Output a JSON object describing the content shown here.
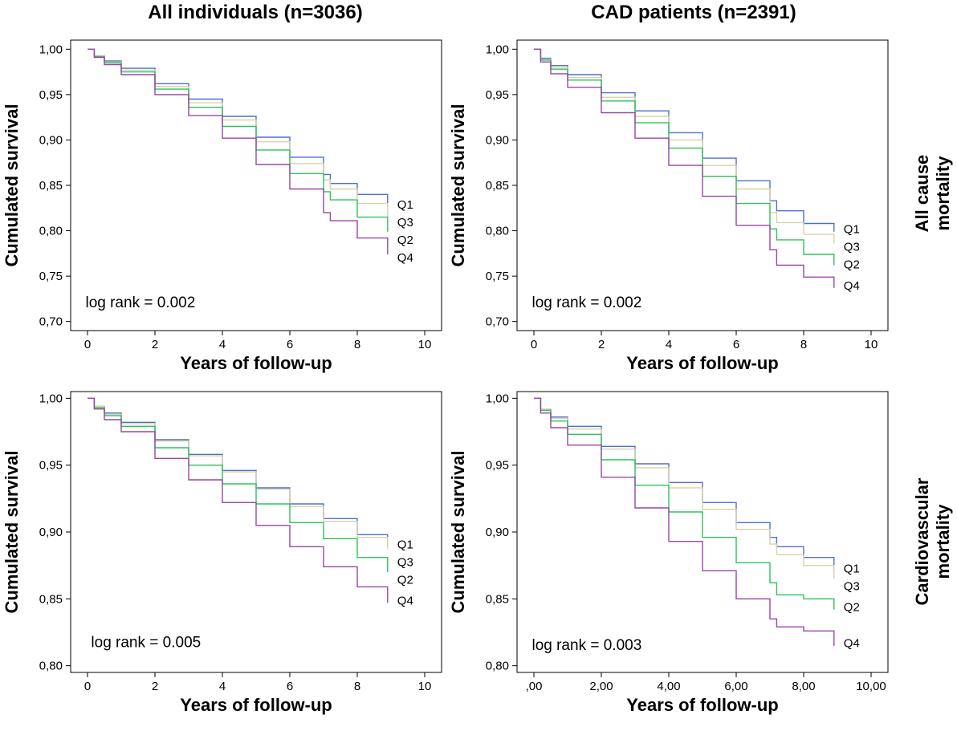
{
  "figure": {
    "col_titles": [
      "All individuals (n=3036)",
      "CAD patients (n=2391)"
    ],
    "row_titles": [
      [
        "All cause",
        "mortality"
      ],
      [
        "Cardiovascular",
        "mortality"
      ]
    ]
  },
  "colors": {
    "Q1": "#4f6fd1",
    "Q2": "#2ec35a",
    "Q3": "#d9d3a6",
    "Q4": "#9b45a8"
  },
  "chart_data": [
    {
      "type": "line",
      "title": "All individuals (n=3036)",
      "xlabel": "Years of follow-up",
      "ylabel": "Cumulated survival",
      "xlim": [
        -0.5,
        10.5
      ],
      "ylim": [
        0.69,
        1.01
      ],
      "xticks": [
        0,
        2,
        4,
        6,
        8,
        10
      ],
      "xtick_labels": [
        "0",
        "2",
        "4",
        "6",
        "8",
        "10"
      ],
      "yticks": [
        0.7,
        0.75,
        0.8,
        0.85,
        0.9,
        0.95,
        1.0
      ],
      "ytick_labels": [
        "0,70",
        "0,75",
        "0,80",
        "0,85",
        "0,90",
        "0,95",
        "1,00"
      ],
      "annotation": "log rank = 0.002",
      "grid": false,
      "label_order": [
        "Q1",
        "Q3",
        "Q2",
        "Q4"
      ],
      "series": [
        {
          "name": "Q1",
          "x": [
            0,
            0.2,
            0.5,
            1,
            2,
            3,
            4,
            5,
            6,
            7,
            7.2,
            8,
            8.9
          ],
          "y": [
            1.0,
            0.993,
            0.987,
            0.979,
            0.962,
            0.945,
            0.926,
            0.903,
            0.881,
            0.862,
            0.852,
            0.84,
            0.826
          ]
        },
        {
          "name": "Q3",
          "x": [
            0,
            0.2,
            0.5,
            1,
            2,
            3,
            4,
            5,
            6,
            7,
            7.2,
            8,
            8.9
          ],
          "y": [
            1.0,
            0.993,
            0.986,
            0.977,
            0.959,
            0.941,
            0.922,
            0.898,
            0.874,
            0.856,
            0.846,
            0.83,
            0.815
          ]
        },
        {
          "name": "Q2",
          "x": [
            0,
            0.2,
            0.5,
            1,
            2,
            3,
            4,
            5,
            6,
            7,
            7.2,
            8,
            8.9
          ],
          "y": [
            1.0,
            0.992,
            0.985,
            0.975,
            0.956,
            0.936,
            0.915,
            0.889,
            0.863,
            0.843,
            0.834,
            0.815,
            0.799
          ]
        },
        {
          "name": "Q4",
          "x": [
            0,
            0.2,
            0.5,
            1,
            2,
            3,
            4,
            5,
            6,
            7,
            7.2,
            8,
            8.9
          ],
          "y": [
            1.0,
            0.991,
            0.983,
            0.972,
            0.95,
            0.927,
            0.902,
            0.873,
            0.846,
            0.82,
            0.811,
            0.792,
            0.774
          ]
        }
      ]
    },
    {
      "type": "line",
      "title": "CAD patients (n=2391)",
      "xlabel": "Years of follow-up",
      "ylabel": "Cumulated survival",
      "xlim": [
        -0.5,
        10.5
      ],
      "ylim": [
        0.69,
        1.01
      ],
      "xticks": [
        0,
        2,
        4,
        6,
        8,
        10
      ],
      "xtick_labels": [
        "0",
        "2",
        "4",
        "6",
        "8",
        "10"
      ],
      "yticks": [
        0.7,
        0.75,
        0.8,
        0.85,
        0.9,
        0.95,
        1.0
      ],
      "ytick_labels": [
        "0,70",
        "0,75",
        "0,80",
        "0,85",
        "0,90",
        "0,95",
        "1,00"
      ],
      "annotation": "log rank = 0.002",
      "grid": false,
      "label_order": [
        "Q1",
        "Q3",
        "Q2",
        "Q4"
      ],
      "series": [
        {
          "name": "Q1",
          "x": [
            0,
            0.2,
            0.5,
            1,
            2,
            3,
            4,
            5,
            6,
            7,
            7.2,
            8,
            8.9
          ],
          "y": [
            1.0,
            0.99,
            0.982,
            0.972,
            0.952,
            0.932,
            0.908,
            0.88,
            0.855,
            0.833,
            0.822,
            0.808,
            0.799
          ]
        },
        {
          "name": "Q3",
          "x": [
            0,
            0.2,
            0.5,
            1,
            2,
            3,
            4,
            5,
            6,
            7,
            7.2,
            8,
            8.9
          ],
          "y": [
            1.0,
            0.989,
            0.98,
            0.969,
            0.947,
            0.926,
            0.9,
            0.872,
            0.846,
            0.82,
            0.809,
            0.796,
            0.786
          ]
        },
        {
          "name": "Q2",
          "x": [
            0,
            0.2,
            0.5,
            1,
            2,
            3,
            4,
            5,
            6,
            7,
            7.2,
            8,
            8.9
          ],
          "y": [
            1.0,
            0.988,
            0.978,
            0.966,
            0.943,
            0.919,
            0.891,
            0.86,
            0.83,
            0.802,
            0.79,
            0.774,
            0.762
          ]
        },
        {
          "name": "Q4",
          "x": [
            0,
            0.2,
            0.5,
            1,
            2,
            3,
            4,
            5,
            6,
            7,
            7.2,
            8,
            8.9
          ],
          "y": [
            1.0,
            0.986,
            0.973,
            0.958,
            0.93,
            0.902,
            0.872,
            0.838,
            0.806,
            0.779,
            0.762,
            0.749,
            0.737
          ]
        }
      ]
    },
    {
      "type": "line",
      "title": "",
      "xlabel": "Years of follow-up",
      "ylabel": "Cumulated survival",
      "xlim": [
        -0.5,
        10.5
      ],
      "ylim": [
        0.795,
        1.005
      ],
      "xticks": [
        0,
        2,
        4,
        6,
        8,
        10
      ],
      "xtick_labels": [
        "0",
        "2",
        "4",
        "6",
        "8",
        "10"
      ],
      "yticks": [
        0.8,
        0.85,
        0.9,
        0.95,
        1.0
      ],
      "ytick_labels": [
        "0,80",
        "0,85",
        "0,90",
        "0,95",
        "1,00"
      ],
      "annotation": "log rank = 0.005",
      "grid": false,
      "label_order": [
        "Q1",
        "Q3",
        "Q2",
        "Q4"
      ],
      "series": [
        {
          "name": "Q1",
          "x": [
            0,
            0.2,
            0.5,
            1,
            2,
            3,
            4,
            5,
            6,
            7,
            8,
            8.9
          ],
          "y": [
            1.0,
            0.994,
            0.989,
            0.982,
            0.969,
            0.958,
            0.946,
            0.933,
            0.921,
            0.91,
            0.898,
            0.889
          ]
        },
        {
          "name": "Q3",
          "x": [
            0,
            0.2,
            0.5,
            1,
            2,
            3,
            4,
            5,
            6,
            7,
            8,
            8.9
          ],
          "y": [
            1.0,
            0.994,
            0.988,
            0.981,
            0.968,
            0.957,
            0.945,
            0.932,
            0.919,
            0.908,
            0.896,
            0.887
          ]
        },
        {
          "name": "Q2",
          "x": [
            0,
            0.2,
            0.5,
            1,
            2,
            3,
            4,
            5,
            6,
            7,
            8,
            8.9
          ],
          "y": [
            1.0,
            0.993,
            0.987,
            0.979,
            0.963,
            0.95,
            0.936,
            0.921,
            0.907,
            0.895,
            0.881,
            0.87
          ]
        },
        {
          "name": "Q4",
          "x": [
            0,
            0.2,
            0.5,
            1,
            2,
            3,
            4,
            5,
            6,
            7,
            8,
            8.9
          ],
          "y": [
            1.0,
            0.992,
            0.984,
            0.975,
            0.955,
            0.939,
            0.922,
            0.905,
            0.889,
            0.874,
            0.859,
            0.847
          ]
        }
      ]
    },
    {
      "type": "line",
      "title": "",
      "xlabel": "Years of follow-up",
      "ylabel": "Cumulated survival",
      "xlim": [
        -0.5,
        10.5
      ],
      "ylim": [
        0.795,
        1.005
      ],
      "xticks": [
        0,
        2,
        4,
        6,
        8,
        10
      ],
      "xtick_labels": [
        ",00",
        "2,00",
        "4,00",
        "6,00",
        "8,00",
        "10,00"
      ],
      "yticks": [
        0.8,
        0.85,
        0.9,
        0.95,
        1.0
      ],
      "ytick_labels": [
        "0,80",
        "0,85",
        "0,90",
        "0,95",
        "1,00"
      ],
      "annotation": "log rank = 0.003",
      "grid": false,
      "label_order": [
        "Q1",
        "Q3",
        "Q2",
        "Q4"
      ],
      "series": [
        {
          "name": "Q1",
          "x": [
            0,
            0.2,
            0.5,
            1,
            2,
            3,
            4,
            5,
            6,
            7,
            7.2,
            8,
            8.9
          ],
          "y": [
            1.0,
            0.992,
            0.986,
            0.979,
            0.964,
            0.951,
            0.937,
            0.922,
            0.907,
            0.896,
            0.889,
            0.881,
            0.871
          ]
        },
        {
          "name": "Q3",
          "x": [
            0,
            0.2,
            0.5,
            1,
            2,
            3,
            4,
            5,
            6,
            7,
            7.2,
            8,
            8.9
          ],
          "y": [
            1.0,
            0.992,
            0.985,
            0.977,
            0.962,
            0.948,
            0.933,
            0.917,
            0.902,
            0.891,
            0.883,
            0.875,
            0.865
          ]
        },
        {
          "name": "Q2",
          "x": [
            0,
            0.2,
            0.5,
            1,
            2,
            3,
            4,
            5,
            6,
            7,
            7.2,
            8,
            8.9
          ],
          "y": [
            1.0,
            0.991,
            0.983,
            0.973,
            0.954,
            0.935,
            0.915,
            0.896,
            0.877,
            0.862,
            0.853,
            0.85,
            0.842
          ]
        },
        {
          "name": "Q4",
          "x": [
            0,
            0.2,
            0.5,
            1,
            2,
            3,
            4,
            5,
            6,
            7,
            7.2,
            8,
            8.9
          ],
          "y": [
            1.0,
            0.989,
            0.978,
            0.965,
            0.941,
            0.918,
            0.893,
            0.871,
            0.85,
            0.835,
            0.829,
            0.826,
            0.815
          ]
        }
      ]
    }
  ]
}
